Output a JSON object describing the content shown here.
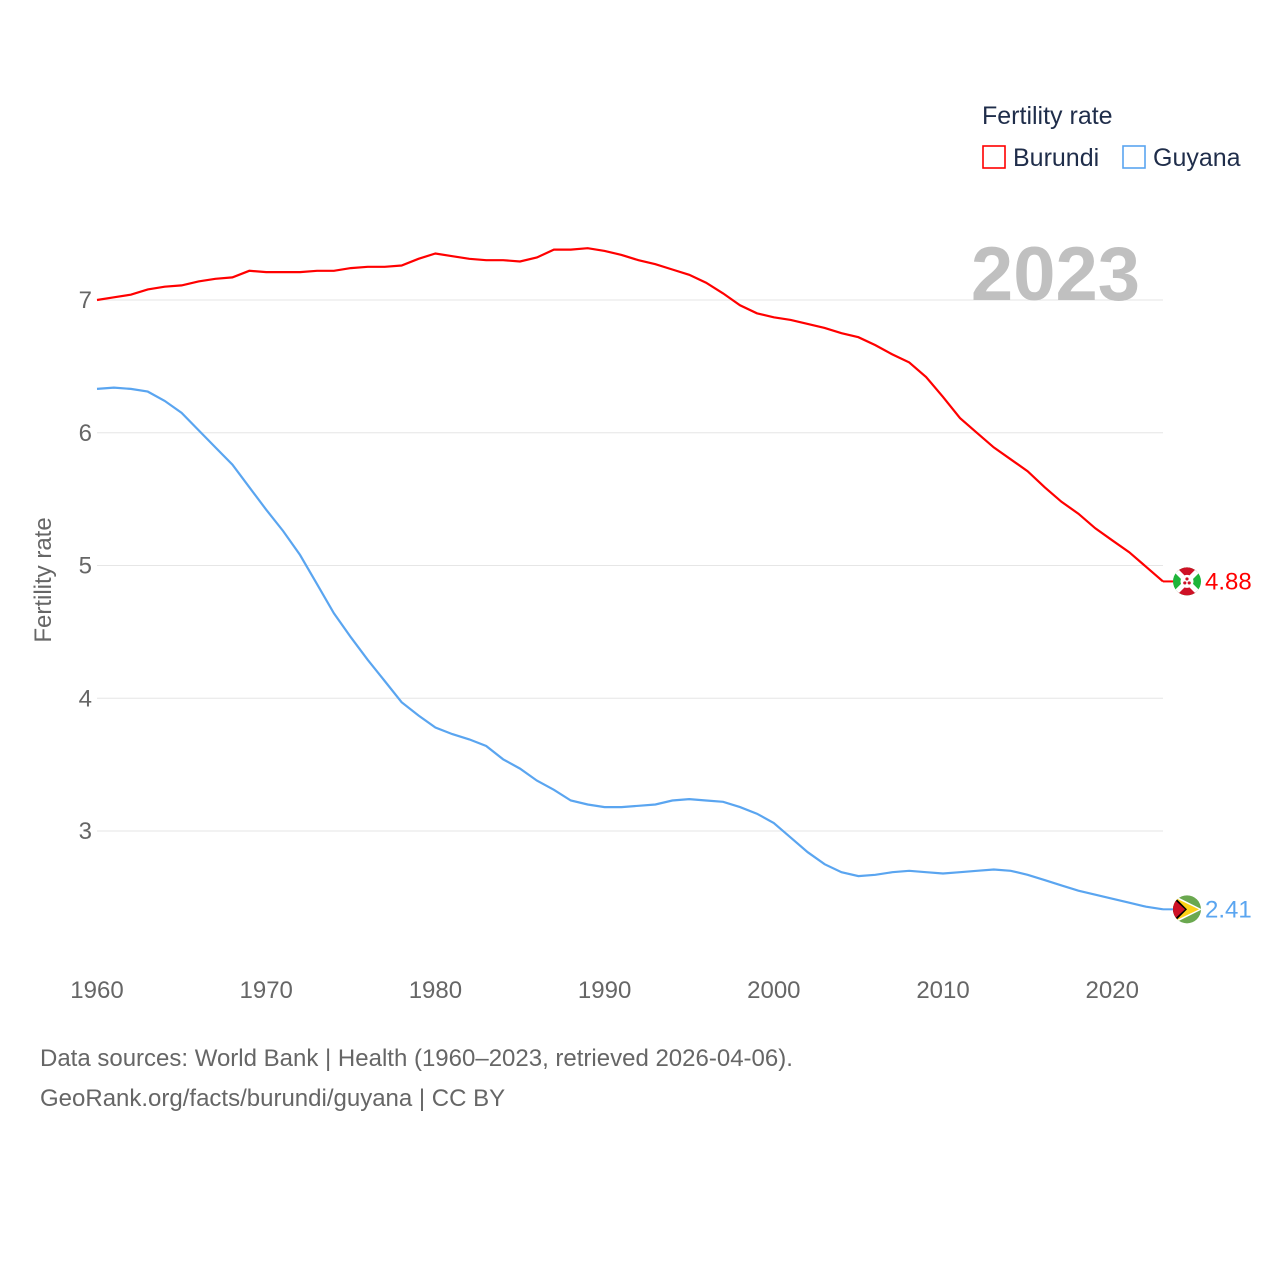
{
  "chart_data": {
    "type": "line",
    "title": "Fertility rate",
    "ylabel": "Fertility rate",
    "xlabel": "",
    "year_label": "2023",
    "xlim": [
      1960,
      2023
    ],
    "ylim": [
      2.2,
      7.6
    ],
    "x_ticks": [
      1960,
      1970,
      1980,
      1990,
      2000,
      2010,
      2020
    ],
    "y_ticks": [
      3,
      4,
      5,
      6,
      7
    ],
    "grid": true,
    "legend_position": "top-right",
    "x": [
      1960,
      1961,
      1962,
      1963,
      1964,
      1965,
      1966,
      1967,
      1968,
      1969,
      1970,
      1971,
      1972,
      1973,
      1974,
      1975,
      1976,
      1977,
      1978,
      1979,
      1980,
      1981,
      1982,
      1983,
      1984,
      1985,
      1986,
      1987,
      1988,
      1989,
      1990,
      1991,
      1992,
      1993,
      1994,
      1995,
      1996,
      1997,
      1998,
      1999,
      2000,
      2001,
      2002,
      2003,
      2004,
      2005,
      2006,
      2007,
      2008,
      2009,
      2010,
      2011,
      2012,
      2013,
      2014,
      2015,
      2016,
      2017,
      2018,
      2019,
      2020,
      2021,
      2022,
      2023
    ],
    "series": [
      {
        "name": "Burundi",
        "color": "#ff0000",
        "end_label": "4.88",
        "flag": "burundi-flag",
        "values": [
          7.0,
          7.02,
          7.04,
          7.08,
          7.1,
          7.11,
          7.14,
          7.16,
          7.17,
          7.22,
          7.21,
          7.21,
          7.21,
          7.22,
          7.22,
          7.24,
          7.25,
          7.25,
          7.26,
          7.31,
          7.35,
          7.33,
          7.31,
          7.3,
          7.3,
          7.29,
          7.32,
          7.38,
          7.38,
          7.39,
          7.37,
          7.34,
          7.3,
          7.27,
          7.23,
          7.19,
          7.13,
          7.05,
          6.96,
          6.9,
          6.87,
          6.85,
          6.82,
          6.79,
          6.75,
          6.72,
          6.66,
          6.59,
          6.53,
          6.42,
          6.27,
          6.11,
          6.0,
          5.89,
          5.8,
          5.71,
          5.59,
          5.48,
          5.39,
          5.28,
          5.19,
          5.1,
          4.99,
          4.88
        ]
      },
      {
        "name": "Guyana",
        "color": "#5aa5f0",
        "end_label": "2.41",
        "flag": "guyana-flag",
        "values": [
          6.33,
          6.34,
          6.33,
          6.31,
          6.24,
          6.15,
          6.02,
          5.89,
          5.76,
          5.59,
          5.42,
          5.26,
          5.08,
          4.86,
          4.64,
          4.46,
          4.29,
          4.13,
          3.97,
          3.87,
          3.78,
          3.73,
          3.69,
          3.64,
          3.54,
          3.47,
          3.38,
          3.31,
          3.23,
          3.2,
          3.18,
          3.18,
          3.19,
          3.2,
          3.23,
          3.24,
          3.23,
          3.22,
          3.18,
          3.13,
          3.06,
          2.95,
          2.84,
          2.75,
          2.69,
          2.66,
          2.67,
          2.69,
          2.7,
          2.69,
          2.68,
          2.69,
          2.7,
          2.71,
          2.7,
          2.67,
          2.63,
          2.59,
          2.55,
          2.52,
          2.49,
          2.46,
          2.43,
          2.41
        ]
      }
    ]
  },
  "footer": {
    "line1": "Data sources: World Bank | Health (1960–2023, retrieved 2026-04-06).",
    "line2": "GeoRank.org/facts/burundi/guyana | CC BY"
  }
}
